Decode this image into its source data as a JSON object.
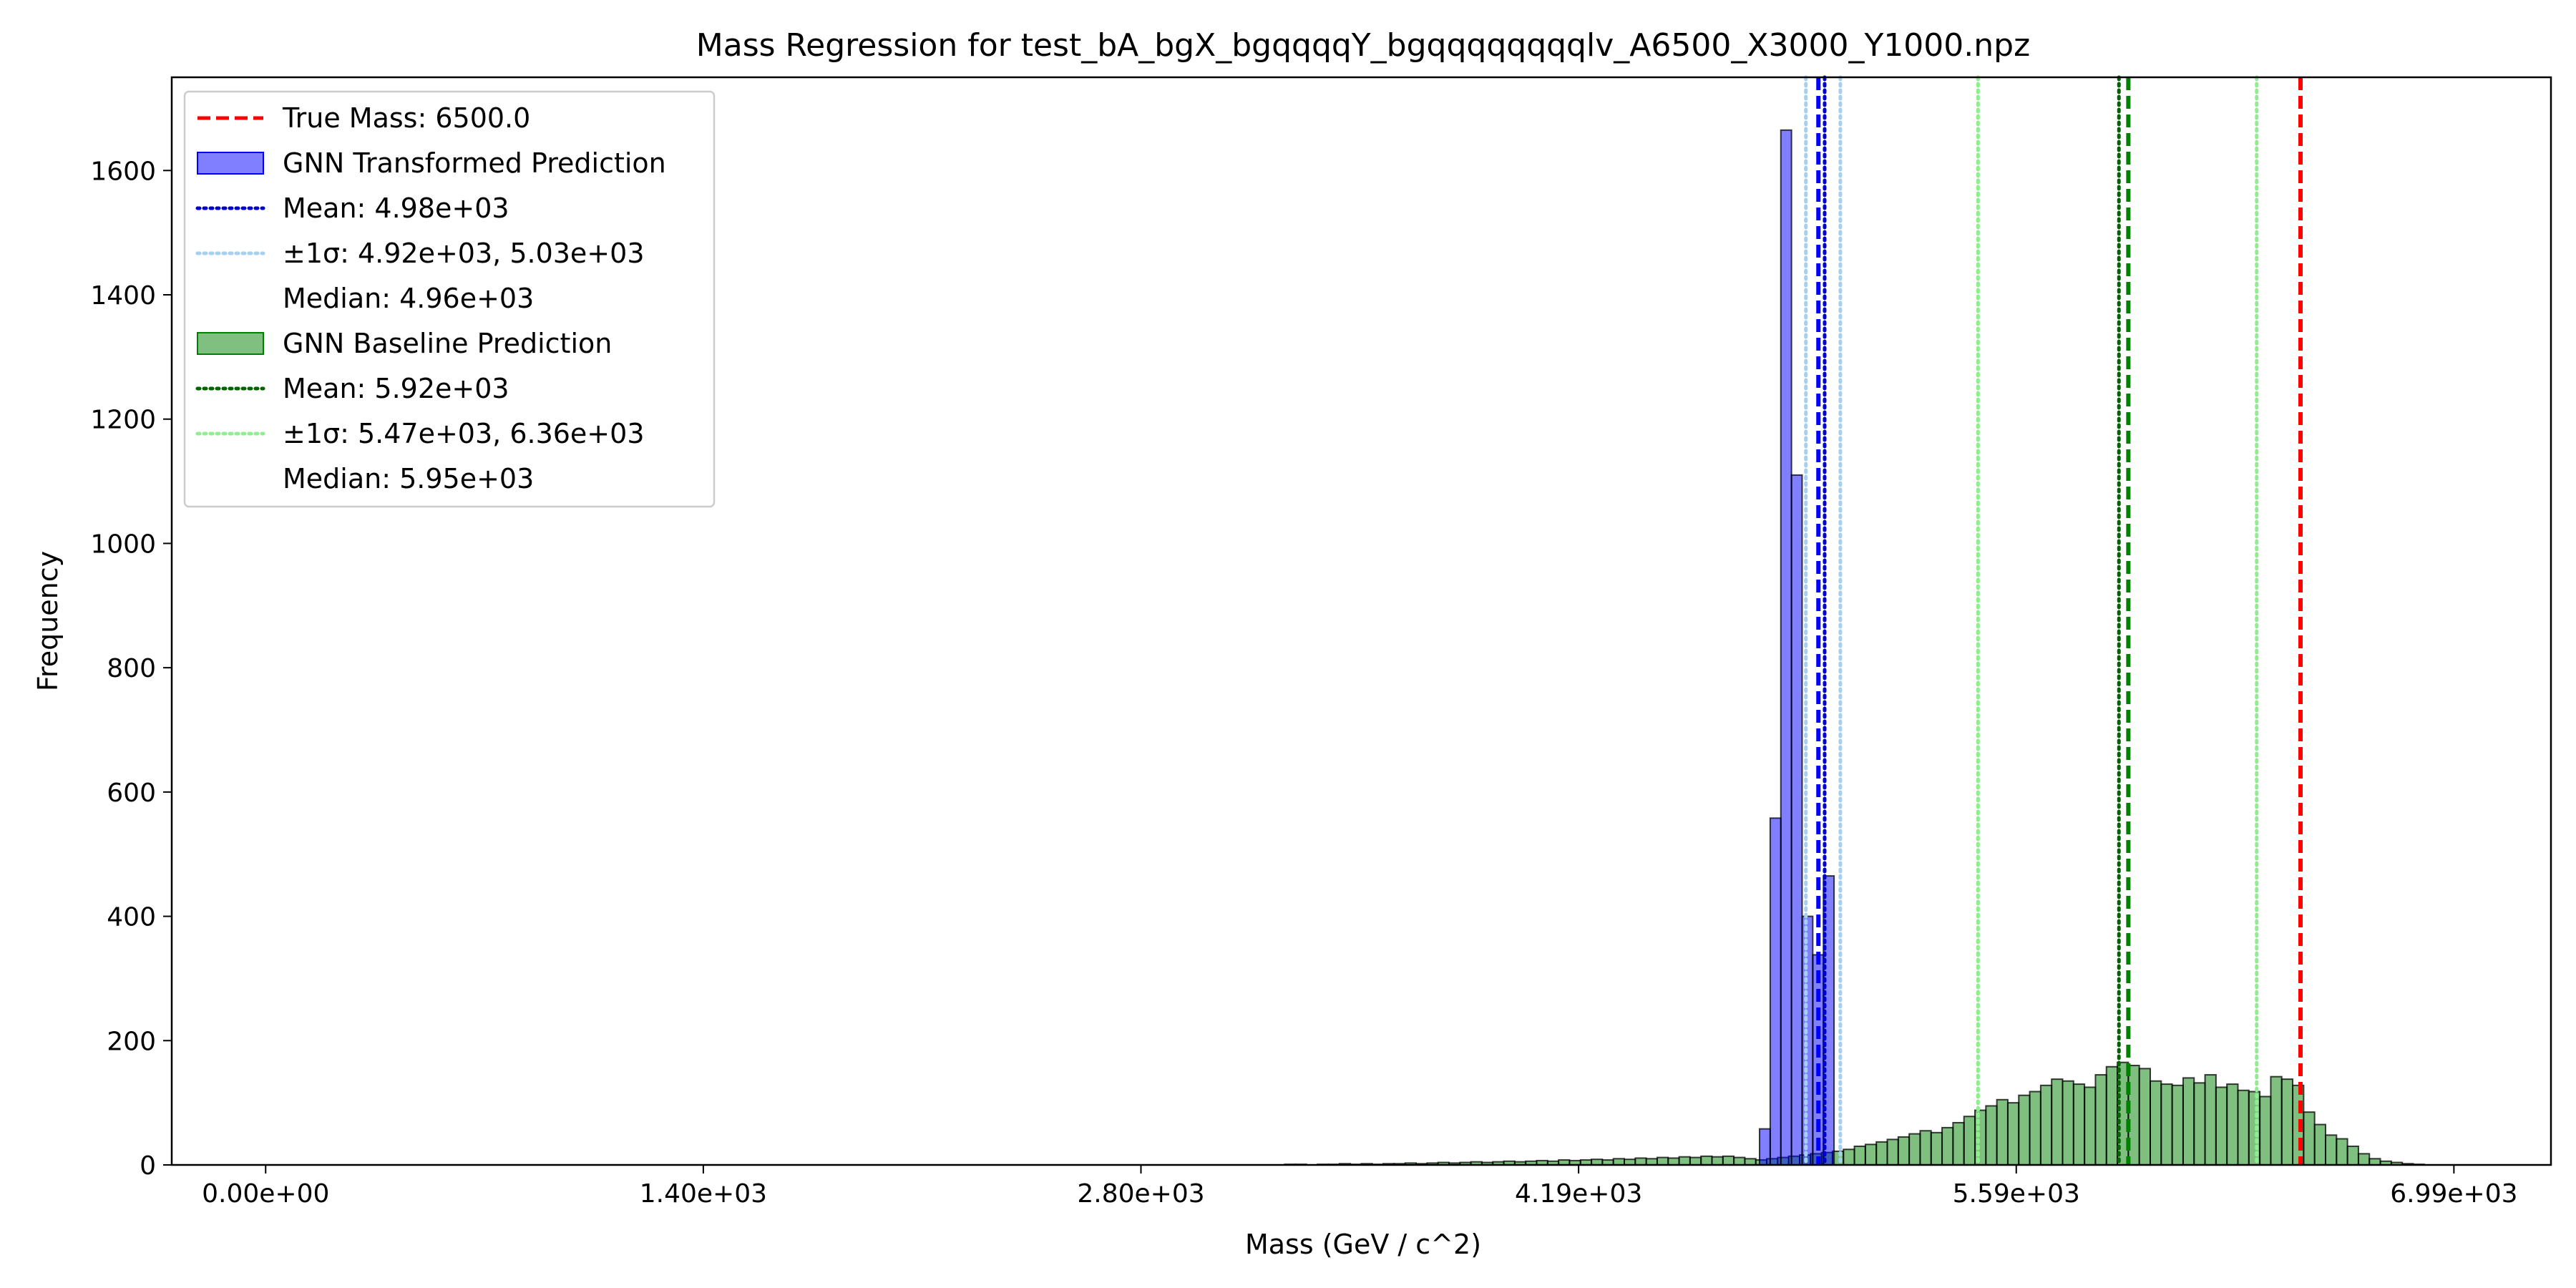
{
  "chart_data": {
    "type": "bar",
    "title": "Mass Regression for test_bA_bgX_bgqqqqY_bgqqqqqqqqlv_A6500_X3000_Y1000.npz",
    "xlabel": "Mass (GeV / c^2)",
    "ylabel": "Frequency",
    "xlim": [
      -300,
      7300
    ],
    "ylim": [
      0,
      1750
    ],
    "x_ticks": [
      {
        "value": 0,
        "label": "0.00e+00"
      },
      {
        "value": 1398,
        "label": "1.40e+03"
      },
      {
        "value": 2796,
        "label": "2.80e+03"
      },
      {
        "value": 4194,
        "label": "4.19e+03"
      },
      {
        "value": 5592,
        "label": "5.59e+03"
      },
      {
        "value": 6990,
        "label": "6.99e+03"
      }
    ],
    "y_ticks": [
      {
        "value": 0,
        "label": "0"
      },
      {
        "value": 200,
        "label": "200"
      },
      {
        "value": 400,
        "label": "400"
      },
      {
        "value": 600,
        "label": "600"
      },
      {
        "value": 800,
        "label": "800"
      },
      {
        "value": 1000,
        "label": "1000"
      },
      {
        "value": 1200,
        "label": "1200"
      },
      {
        "value": 1400,
        "label": "1400"
      },
      {
        "value": 1600,
        "label": "1600"
      }
    ],
    "legend_position": "top-left",
    "grid": false,
    "series": [
      {
        "name": "GNN Transformed Prediction",
        "kind": "histogram",
        "color": "#0000ff",
        "alpha": 0.5,
        "bin_width": 34,
        "bins": [
          {
            "x0": 4772,
            "count": 58
          },
          {
            "x0": 4806,
            "count": 558
          },
          {
            "x0": 4840,
            "count": 1665
          },
          {
            "x0": 4874,
            "count": 1110
          },
          {
            "x0": 4908,
            "count": 400
          },
          {
            "x0": 4942,
            "count": 338
          },
          {
            "x0": 4976,
            "count": 465
          }
        ]
      },
      {
        "name": "GNN Baseline Prediction",
        "kind": "histogram",
        "color": "#008000",
        "alpha": 0.5,
        "bin_width": 35,
        "bins": [
          {
            "x0": 3255,
            "count": 1
          },
          {
            "x0": 3290,
            "count": 1
          },
          {
            "x0": 3325,
            "count": 0
          },
          {
            "x0": 3360,
            "count": 1
          },
          {
            "x0": 3395,
            "count": 1
          },
          {
            "x0": 3430,
            "count": 2
          },
          {
            "x0": 3465,
            "count": 1
          },
          {
            "x0": 3500,
            "count": 2
          },
          {
            "x0": 3535,
            "count": 1
          },
          {
            "x0": 3570,
            "count": 2
          },
          {
            "x0": 3605,
            "count": 2
          },
          {
            "x0": 3640,
            "count": 3
          },
          {
            "x0": 3675,
            "count": 2
          },
          {
            "x0": 3710,
            "count": 3
          },
          {
            "x0": 3745,
            "count": 4
          },
          {
            "x0": 3780,
            "count": 3
          },
          {
            "x0": 3815,
            "count": 4
          },
          {
            "x0": 3850,
            "count": 5
          },
          {
            "x0": 3885,
            "count": 4
          },
          {
            "x0": 3920,
            "count": 5
          },
          {
            "x0": 3955,
            "count": 6
          },
          {
            "x0": 3990,
            "count": 5
          },
          {
            "x0": 4025,
            "count": 6
          },
          {
            "x0": 4060,
            "count": 7
          },
          {
            "x0": 4095,
            "count": 6
          },
          {
            "x0": 4130,
            "count": 8
          },
          {
            "x0": 4165,
            "count": 7
          },
          {
            "x0": 4200,
            "count": 8
          },
          {
            "x0": 4235,
            "count": 9
          },
          {
            "x0": 4270,
            "count": 8
          },
          {
            "x0": 4305,
            "count": 10
          },
          {
            "x0": 4340,
            "count": 9
          },
          {
            "x0": 4375,
            "count": 11
          },
          {
            "x0": 4410,
            "count": 10
          },
          {
            "x0": 4445,
            "count": 12
          },
          {
            "x0": 4480,
            "count": 11
          },
          {
            "x0": 4515,
            "count": 13
          },
          {
            "x0": 4550,
            "count": 12
          },
          {
            "x0": 4585,
            "count": 14
          },
          {
            "x0": 4620,
            "count": 13
          },
          {
            "x0": 4655,
            "count": 14
          },
          {
            "x0": 4690,
            "count": 12
          },
          {
            "x0": 4725,
            "count": 10
          },
          {
            "x0": 4760,
            "count": 8
          },
          {
            "x0": 4795,
            "count": 10
          },
          {
            "x0": 4830,
            "count": 12
          },
          {
            "x0": 4865,
            "count": 14
          },
          {
            "x0": 4900,
            "count": 16
          },
          {
            "x0": 4935,
            "count": 18
          },
          {
            "x0": 4970,
            "count": 20
          },
          {
            "x0": 5005,
            "count": 22
          },
          {
            "x0": 5040,
            "count": 25
          },
          {
            "x0": 5075,
            "count": 30
          },
          {
            "x0": 5110,
            "count": 33
          },
          {
            "x0": 5145,
            "count": 37
          },
          {
            "x0": 5180,
            "count": 41
          },
          {
            "x0": 5215,
            "count": 45
          },
          {
            "x0": 5250,
            "count": 50
          },
          {
            "x0": 5285,
            "count": 55
          },
          {
            "x0": 5320,
            "count": 52
          },
          {
            "x0": 5355,
            "count": 60
          },
          {
            "x0": 5390,
            "count": 68
          },
          {
            "x0": 5425,
            "count": 78
          },
          {
            "x0": 5460,
            "count": 88
          },
          {
            "x0": 5495,
            "count": 95
          },
          {
            "x0": 5530,
            "count": 105
          },
          {
            "x0": 5565,
            "count": 100
          },
          {
            "x0": 5600,
            "count": 112
          },
          {
            "x0": 5635,
            "count": 118
          },
          {
            "x0": 5670,
            "count": 128
          },
          {
            "x0": 5705,
            "count": 138
          },
          {
            "x0": 5740,
            "count": 135
          },
          {
            "x0": 5775,
            "count": 130
          },
          {
            "x0": 5810,
            "count": 125
          },
          {
            "x0": 5845,
            "count": 145
          },
          {
            "x0": 5880,
            "count": 158
          },
          {
            "x0": 5915,
            "count": 165
          },
          {
            "x0": 5950,
            "count": 160
          },
          {
            "x0": 5985,
            "count": 155
          },
          {
            "x0": 6020,
            "count": 135
          },
          {
            "x0": 6055,
            "count": 130
          },
          {
            "x0": 6090,
            "count": 128
          },
          {
            "x0": 6125,
            "count": 140
          },
          {
            "x0": 6160,
            "count": 132
          },
          {
            "x0": 6195,
            "count": 145
          },
          {
            "x0": 6230,
            "count": 125
          },
          {
            "x0": 6265,
            "count": 130
          },
          {
            "x0": 6300,
            "count": 120
          },
          {
            "x0": 6335,
            "count": 118
          },
          {
            "x0": 6370,
            "count": 110
          },
          {
            "x0": 6405,
            "count": 142
          },
          {
            "x0": 6440,
            "count": 138
          },
          {
            "x0": 6475,
            "count": 128
          },
          {
            "x0": 6510,
            "count": 85
          },
          {
            "x0": 6545,
            "count": 65
          },
          {
            "x0": 6580,
            "count": 48
          },
          {
            "x0": 6615,
            "count": 42
          },
          {
            "x0": 6650,
            "count": 30
          },
          {
            "x0": 6685,
            "count": 18
          },
          {
            "x0": 6720,
            "count": 10
          },
          {
            "x0": 6755,
            "count": 6
          },
          {
            "x0": 6790,
            "count": 4
          },
          {
            "x0": 6825,
            "count": 2
          },
          {
            "x0": 6860,
            "count": 1
          }
        ]
      }
    ],
    "vlines": [
      {
        "name": "True Mass",
        "x": 6500.0,
        "color": "#ff0000",
        "style": "dashed"
      },
      {
        "name": "Transformed median",
        "x": 4960,
        "color": "#0000ff",
        "style": "dashed"
      },
      {
        "name": "Transformed mean",
        "x": 4980,
        "color": "#0000cc",
        "style": "dotted"
      },
      {
        "name": "Transformed -1 sigma",
        "x": 4920,
        "color": "#a6d0f0",
        "style": "dotted"
      },
      {
        "name": "Transformed +1 sigma",
        "x": 5030,
        "color": "#a6d0f0",
        "style": "dotted"
      },
      {
        "name": "Baseline median",
        "x": 5950,
        "color": "#008000",
        "style": "dashed"
      },
      {
        "name": "Baseline mean",
        "x": 5920,
        "color": "#006400",
        "style": "dotted"
      },
      {
        "name": "Baseline -1 sigma",
        "x": 5470,
        "color": "#90ee90",
        "style": "dotted"
      },
      {
        "name": "Baseline +1 sigma",
        "x": 6360,
        "color": "#90ee90",
        "style": "dotted"
      }
    ],
    "legend": [
      {
        "label": "True Mass: 6500.0",
        "kind": "line",
        "color": "#ff0000",
        "style": "dashed"
      },
      {
        "label": "GNN Transformed Prediction",
        "kind": "patch",
        "color": "#0000ff",
        "alpha": 0.5
      },
      {
        "label": "Mean: 4.98e+03",
        "kind": "line",
        "color": "#0000cc",
        "style": "dotted"
      },
      {
        "label": "±1σ: 4.92e+03, 5.03e+03",
        "kind": "line",
        "color": "#a6d0f0",
        "style": "dotted"
      },
      {
        "label": "Median: 4.96e+03",
        "kind": "none",
        "color": "#ffffff",
        "style": "dashed"
      },
      {
        "label": "GNN Baseline Prediction",
        "kind": "patch",
        "color": "#008000",
        "alpha": 0.5
      },
      {
        "label": "Mean: 5.92e+03",
        "kind": "line",
        "color": "#006400",
        "style": "dotted"
      },
      {
        "label": "±1σ: 5.47e+03, 6.36e+03",
        "kind": "line",
        "color": "#90ee90",
        "style": "dotted"
      },
      {
        "label": "Median: 5.95e+03",
        "kind": "none",
        "color": "#ffffff",
        "style": "dashed"
      }
    ]
  }
}
